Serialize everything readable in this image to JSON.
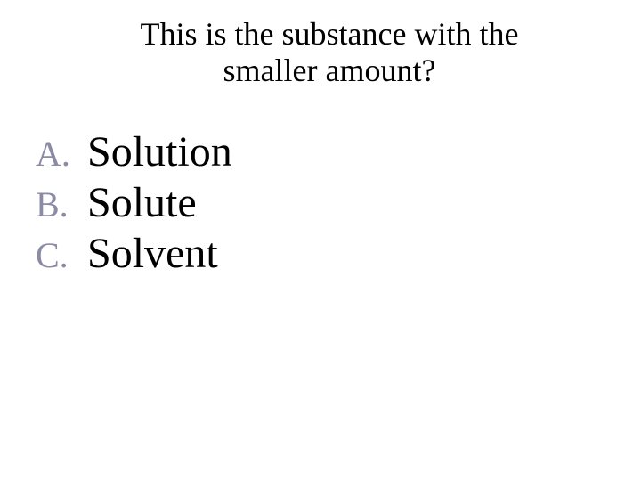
{
  "question": {
    "title_line1": "This is the substance with the",
    "title_line2": "smaller amount?",
    "title_fontsize": 36,
    "title_color": "#000000"
  },
  "options": [
    {
      "letter": "A.",
      "text": "Solution"
    },
    {
      "letter": "B.",
      "text": "Solute"
    },
    {
      "letter": "C.",
      "text": "Solvent"
    }
  ],
  "styling": {
    "background_color": "#ffffff",
    "option_letter_color": "#8b8ba5",
    "option_letter_fontsize": 40,
    "option_text_color": "#000000",
    "option_text_fontsize": 48,
    "font_family": "Times New Roman"
  }
}
